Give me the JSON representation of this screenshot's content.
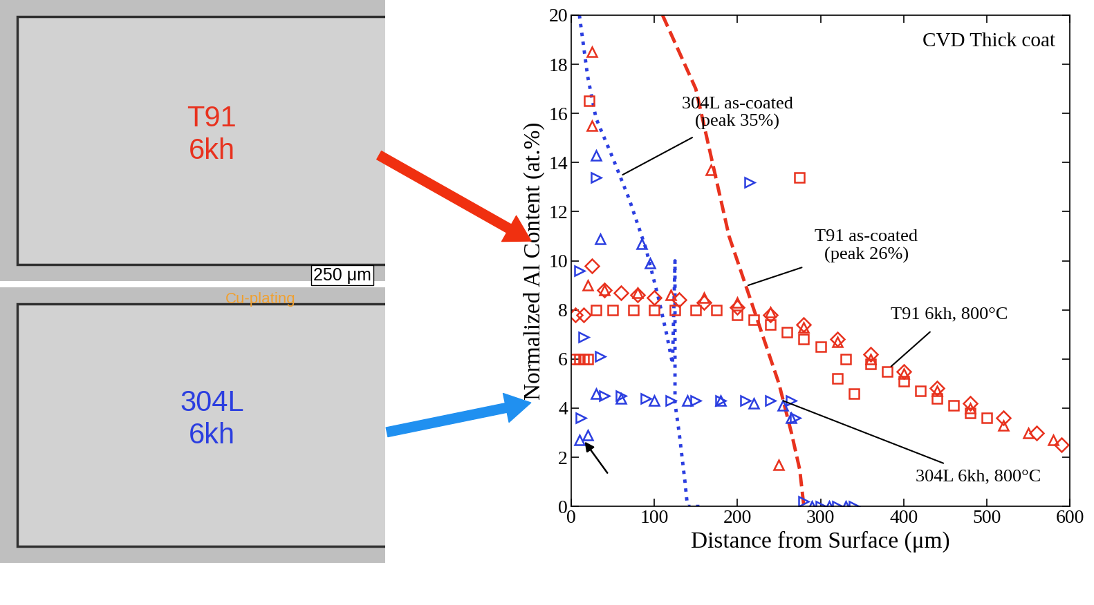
{
  "chart_data": {
    "type": "scatter",
    "annotation_title": "CVD Thick coat",
    "xlabel": "Distance from Surface (μm)",
    "ylabel": "Normalized Al Content (at.%)",
    "xlim": [
      0,
      600
    ],
    "xticks": [
      0,
      100,
      200,
      300,
      400,
      500,
      600
    ],
    "ylim": [
      0,
      20
    ],
    "yticks": [
      0,
      2,
      4,
      6,
      8,
      10,
      12,
      14,
      16,
      18,
      20
    ],
    "grid": false,
    "annotations": [
      "304L as-coated\n(peak 35%)",
      "T91 as-coated\n(peak 26%)",
      "T91 6kh, 800°C",
      "304L 6kh, 800°C"
    ],
    "series": [
      {
        "type": "line",
        "color": "#2b3ee0",
        "line_style": "dotted",
        "x": [
          10,
          20,
          30,
          50,
          70,
          90,
          105,
          115,
          122,
          125,
          125,
          130,
          137,
          140,
          155
        ],
        "values": [
          20,
          17.5,
          15.8,
          14.2,
          12.5,
          10.5,
          8.5,
          7,
          5.8,
          10,
          4.2,
          3,
          1,
          0,
          0
        ]
      },
      {
        "type": "line",
        "color": "#e8321e",
        "line_style": "dashed",
        "x": [
          110,
          130,
          150,
          170,
          190,
          210,
          230,
          250,
          265,
          275,
          280
        ],
        "values": [
          20,
          18.5,
          17,
          14,
          11,
          9,
          7,
          5,
          3,
          1.5,
          0
        ]
      },
      {
        "type": "scatter",
        "color": "#e8321e",
        "marker": "square",
        "x": [
          5,
          10,
          15,
          20,
          22,
          30,
          50,
          75,
          100,
          125,
          150,
          175,
          200,
          220,
          240,
          260,
          275,
          280,
          300,
          320,
          330,
          340,
          360,
          380,
          400,
          420,
          440,
          460,
          480,
          500
        ],
        "values": [
          6,
          6,
          6,
          6,
          16.5,
          8,
          8,
          8,
          8,
          8,
          8,
          8,
          7.8,
          7.6,
          7.4,
          7.1,
          13.4,
          6.8,
          6.5,
          5.2,
          6,
          4.6,
          5.8,
          5.5,
          5.1,
          4.7,
          4.4,
          4.1,
          3.8,
          3.6
        ]
      },
      {
        "type": "scatter",
        "color": "#e8321e",
        "marker": "diamond",
        "x": [
          5,
          15,
          25,
          40,
          60,
          80,
          100,
          130,
          160,
          200,
          240,
          280,
          320,
          360,
          400,
          440,
          480,
          520,
          560,
          590
        ],
        "values": [
          7.8,
          7.8,
          9.8,
          8.8,
          8.7,
          8.6,
          8.5,
          8.4,
          8.3,
          8.1,
          7.8,
          7.4,
          6.8,
          6.2,
          5.5,
          4.8,
          4.2,
          3.6,
          3.0,
          2.5
        ]
      },
      {
        "type": "scatter",
        "color": "#e8321e",
        "marker": "triangle",
        "x": [
          25,
          25,
          20,
          40,
          80,
          120,
          168,
          160,
          200,
          250,
          240,
          280,
          320,
          360,
          400,
          440,
          480,
          520,
          550,
          580
        ],
        "values": [
          18.5,
          15.5,
          9,
          8.8,
          8.7,
          8.6,
          13.7,
          8.5,
          8.3,
          1.7,
          7.9,
          7.3,
          6.7,
          6.0,
          5.4,
          4.7,
          4.0,
          3.3,
          3.0,
          2.7
        ]
      },
      {
        "type": "scatter",
        "color": "#2b3ee0",
        "marker": "triangle_right",
        "x": [
          10,
          15,
          12,
          30,
          35,
          40,
          60,
          90,
          120,
          150,
          180,
          215,
          210,
          240,
          265,
          270,
          280,
          300,
          320,
          340
        ],
        "values": [
          9.6,
          6.9,
          3.6,
          13.4,
          6.1,
          4.5,
          4.5,
          4.4,
          4.3,
          4.3,
          4.3,
          13.2,
          4.3,
          4.3,
          4.3,
          3.6,
          0.2,
          0,
          0,
          0
        ]
      },
      {
        "type": "scatter",
        "color": "#2b3ee0",
        "marker": "triangle",
        "x": [
          10,
          20,
          30,
          35,
          30,
          60,
          85,
          95,
          100,
          140,
          180,
          220,
          255,
          265,
          290,
          310,
          330
        ],
        "values": [
          2.7,
          2.9,
          14.3,
          10.9,
          4.6,
          4.4,
          10.7,
          9.9,
          4.3,
          4.3,
          4.3,
          4.2,
          4.1,
          3.6,
          0,
          0,
          0
        ]
      }
    ]
  },
  "images": [
    {
      "label": [
        "T91",
        "6kh"
      ],
      "color": "#e8321e"
    },
    {
      "label": [
        "304L",
        "6kh"
      ],
      "color": "#2b3ee0"
    }
  ],
  "scale_bar": "250 μm",
  "coating_note": "Cu-plating"
}
